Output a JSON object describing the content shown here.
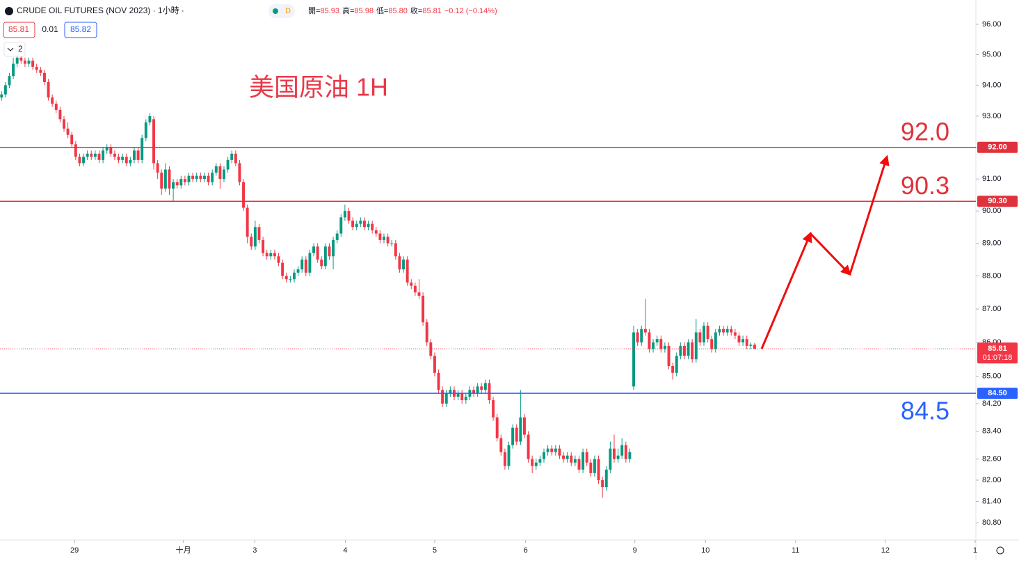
{
  "chart_data": {
    "type": "candlestick",
    "header": {
      "symbol": "CRUDE OIL FUTURES (NOV 2023) · 1小時 ·",
      "badge": "D",
      "quote": [
        [
          "開=",
          "85.93"
        ],
        [
          "高=",
          "85.98"
        ],
        [
          "低=",
          "85.80"
        ],
        [
          "收=",
          "85.81"
        ]
      ],
      "change": "−0.12 (−0.14%)",
      "bid": "85.81",
      "spread": "0.01",
      "ask": "85.82",
      "count": "2"
    },
    "title": "美国原油 1H",
    "up_color": "#089981",
    "down_color": "#f23645",
    "log": true,
    "ylim": [
      80.32,
      96.81
    ],
    "xlim": [
      -0.4,
      249.7
    ],
    "yticks": [
      {
        "value": 96,
        "label": "96.00"
      },
      {
        "value": 95,
        "label": "95.00"
      },
      {
        "value": 94,
        "label": "94.00"
      },
      {
        "value": 93,
        "label": "93.00"
      },
      {
        "value": 92,
        "label": "92.00"
      },
      {
        "value": 91,
        "label": "91.00"
      },
      {
        "value": 90,
        "label": "90.00"
      },
      {
        "value": 89,
        "label": "89.00"
      },
      {
        "value": 88,
        "label": "88.00"
      },
      {
        "value": 87,
        "label": "87.00"
      },
      {
        "value": 86,
        "label": "86.00"
      },
      {
        "value": 85,
        "label": "85.00"
      },
      {
        "value": 84.2,
        "label": "84.20"
      },
      {
        "value": 83.4,
        "label": "83.40"
      },
      {
        "value": 82.6,
        "label": "82.60"
      },
      {
        "value": 82,
        "label": "82.00"
      },
      {
        "value": 81.4,
        "label": "81.40"
      },
      {
        "value": 80.8,
        "label": "80.80"
      }
    ],
    "xticks": [
      {
        "value": 18.7,
        "label": "29"
      },
      {
        "value": 46.6,
        "label": "十月"
      },
      {
        "value": 64.9,
        "label": "3"
      },
      {
        "value": 88.1,
        "label": "4"
      },
      {
        "value": 111.0,
        "label": "5"
      },
      {
        "value": 134.3,
        "label": "6"
      },
      {
        "value": 162.3,
        "label": "9"
      },
      {
        "value": 180.4,
        "label": "10"
      },
      {
        "value": 203.5,
        "label": "11"
      },
      {
        "value": 226.5,
        "label": "12"
      },
      {
        "value": 249.5,
        "label": "1"
      }
    ],
    "levels": [
      {
        "value": 92,
        "label": "92.00",
        "text": "92.0",
        "color": "#e0323c",
        "text_side": "above"
      },
      {
        "value": 90.3,
        "label": "90.30",
        "text": "90.3",
        "color": "#e0323c",
        "text_side": "above"
      },
      {
        "value": 84.5,
        "label": "84.50",
        "text": "84.5",
        "color": "#2962ff",
        "text_side": "below"
      }
    ],
    "last": {
      "value": 85.81,
      "label": "85.81",
      "countdown": "01:07:18",
      "color": "#f23645"
    },
    "arrow": {
      "x": [
        194.8,
        207.3,
        217.4,
        226.9
      ],
      "y": [
        85.81,
        89.3,
        88.05,
        91.7
      ],
      "color": "#f00d0d"
    },
    "ohlc": [
      [
        93.6,
        93.8,
        93.5,
        93.7
      ],
      [
        93.7,
        94.1,
        93.6,
        94.0
      ],
      [
        94.0,
        94.4,
        93.9,
        94.3
      ],
      [
        94.3,
        94.9,
        94.2,
        94.7
      ],
      [
        94.7,
        95.0,
        94.6,
        94.9
      ],
      [
        94.9,
        95.0,
        94.7,
        94.8
      ],
      [
        94.8,
        94.9,
        94.6,
        94.7
      ],
      [
        94.7,
        94.9,
        94.6,
        94.8
      ],
      [
        94.8,
        94.9,
        94.5,
        94.6
      ],
      [
        94.6,
        94.7,
        94.4,
        94.5
      ],
      [
        94.5,
        94.6,
        94.3,
        94.4
      ],
      [
        94.4,
        94.5,
        94.0,
        94.1
      ],
      [
        94.1,
        94.2,
        93.5,
        93.6
      ],
      [
        93.6,
        93.7,
        93.3,
        93.4
      ],
      [
        93.4,
        93.5,
        93.1,
        93.2
      ],
      [
        93.2,
        93.3,
        92.8,
        92.9
      ],
      [
        92.9,
        93.0,
        92.5,
        92.6
      ],
      [
        92.6,
        92.8,
        92.3,
        92.4
      ],
      [
        92.4,
        92.5,
        92.0,
        92.1
      ],
      [
        92.1,
        92.2,
        91.6,
        91.7
      ],
      [
        91.7,
        91.8,
        91.4,
        91.5
      ],
      [
        91.5,
        91.8,
        91.4,
        91.7
      ],
      [
        91.7,
        91.9,
        91.6,
        91.8
      ],
      [
        91.8,
        91.9,
        91.6,
        91.7
      ],
      [
        91.7,
        91.9,
        91.6,
        91.8
      ],
      [
        91.8,
        91.9,
        91.5,
        91.6
      ],
      [
        91.6,
        92.0,
        91.5,
        91.9
      ],
      [
        91.9,
        92.1,
        91.8,
        92.0
      ],
      [
        92.0,
        92.1,
        91.7,
        91.8
      ],
      [
        91.8,
        91.9,
        91.6,
        91.7
      ],
      [
        91.7,
        91.8,
        91.5,
        91.6
      ],
      [
        91.6,
        91.8,
        91.5,
        91.7
      ],
      [
        91.7,
        91.8,
        91.4,
        91.5
      ],
      [
        91.5,
        91.7,
        91.4,
        91.6
      ],
      [
        91.6,
        92.0,
        91.5,
        91.9
      ],
      [
        91.9,
        92.0,
        91.5,
        91.6
      ],
      [
        91.6,
        92.4,
        91.5,
        92.3
      ],
      [
        92.3,
        92.9,
        92.2,
        92.8
      ],
      [
        92.8,
        93.1,
        92.7,
        93.0
      ],
      [
        92.9,
        93.0,
        91.3,
        91.5
      ],
      [
        91.5,
        91.6,
        91.0,
        91.2
      ],
      [
        91.2,
        91.3,
        90.5,
        90.7
      ],
      [
        90.7,
        91.5,
        90.6,
        91.3
      ],
      [
        91.3,
        91.4,
        90.5,
        90.7
      ],
      [
        90.7,
        91.0,
        90.3,
        90.9
      ],
      [
        90.9,
        91.0,
        90.7,
        90.8
      ],
      [
        90.8,
        91.1,
        90.7,
        91.0
      ],
      [
        91.0,
        91.1,
        90.8,
        90.9
      ],
      [
        90.9,
        91.2,
        90.8,
        91.1
      ],
      [
        91.1,
        91.2,
        90.9,
        91.0
      ],
      [
        91.0,
        91.2,
        90.9,
        91.1
      ],
      [
        91.1,
        91.2,
        90.9,
        91.0
      ],
      [
        91.0,
        91.2,
        90.9,
        91.1
      ],
      [
        91.1,
        91.2,
        90.8,
        90.9
      ],
      [
        90.9,
        91.3,
        90.8,
        91.2
      ],
      [
        91.2,
        91.5,
        91.1,
        91.4
      ],
      [
        91.4,
        91.5,
        90.7,
        91.0
      ],
      [
        91.0,
        91.4,
        90.9,
        91.3
      ],
      [
        91.3,
        91.7,
        91.2,
        91.6
      ],
      [
        91.6,
        91.9,
        91.5,
        91.8
      ],
      [
        91.8,
        91.9,
        91.4,
        91.5
      ],
      [
        91.5,
        91.6,
        90.8,
        90.9
      ],
      [
        90.9,
        91.0,
        90.0,
        90.1
      ],
      [
        90.1,
        90.2,
        89.0,
        89.2
      ],
      [
        89.2,
        89.3,
        88.8,
        88.9
      ],
      [
        88.9,
        89.7,
        88.8,
        89.5
      ],
      [
        89.5,
        89.6,
        89.0,
        89.1
      ],
      [
        89.1,
        89.2,
        88.6,
        88.7
      ],
      [
        88.7,
        88.8,
        88.5,
        88.6
      ],
      [
        88.6,
        88.8,
        88.5,
        88.7
      ],
      [
        88.7,
        88.8,
        88.5,
        88.6
      ],
      [
        88.6,
        88.7,
        88.3,
        88.4
      ],
      [
        88.4,
        88.5,
        87.9,
        88.0
      ],
      [
        88.0,
        88.1,
        87.8,
        87.9
      ],
      [
        87.9,
        88.0,
        87.8,
        87.9
      ],
      [
        87.9,
        88.2,
        87.8,
        88.1
      ],
      [
        88.1,
        88.3,
        88.0,
        88.2
      ],
      [
        88.2,
        88.6,
        88.1,
        88.5
      ],
      [
        88.5,
        88.6,
        88.0,
        88.1
      ],
      [
        88.1,
        88.8,
        88.0,
        88.7
      ],
      [
        88.7,
        89.0,
        88.6,
        88.9
      ],
      [
        88.9,
        89.0,
        88.4,
        88.5
      ],
      [
        88.5,
        88.6,
        88.2,
        88.3
      ],
      [
        88.3,
        89.0,
        88.2,
        88.9
      ],
      [
        88.9,
        89.0,
        88.5,
        88.6
      ],
      [
        88.6,
        89.2,
        88.2,
        89.1
      ],
      [
        89.1,
        89.4,
        89.0,
        89.3
      ],
      [
        89.3,
        89.9,
        89.2,
        89.8
      ],
      [
        89.8,
        90.2,
        89.7,
        90.0
      ],
      [
        90.0,
        90.1,
        89.6,
        89.7
      ],
      [
        89.7,
        89.8,
        89.4,
        89.5
      ],
      [
        89.5,
        89.7,
        89.4,
        89.6
      ],
      [
        89.6,
        89.8,
        89.5,
        89.7
      ],
      [
        89.7,
        89.8,
        89.4,
        89.5
      ],
      [
        89.5,
        89.7,
        89.4,
        89.6
      ],
      [
        89.6,
        89.7,
        89.3,
        89.4
      ],
      [
        89.4,
        89.5,
        89.2,
        89.3
      ],
      [
        89.3,
        89.4,
        89.0,
        89.1
      ],
      [
        89.1,
        89.3,
        89.0,
        89.2
      ],
      [
        89.2,
        89.3,
        88.9,
        89.0
      ],
      [
        89.0,
        89.1,
        88.9,
        89.0
      ],
      [
        89.0,
        89.1,
        88.5,
        88.6
      ],
      [
        88.6,
        88.7,
        88.1,
        88.2
      ],
      [
        88.2,
        88.6,
        88.1,
        88.5
      ],
      [
        88.5,
        88.6,
        87.7,
        87.8
      ],
      [
        87.8,
        87.9,
        87.6,
        87.7
      ],
      [
        87.7,
        87.8,
        87.4,
        87.5
      ],
      [
        87.5,
        87.9,
        87.3,
        87.4
      ],
      [
        87.4,
        87.5,
        86.5,
        86.6
      ],
      [
        86.6,
        86.7,
        85.9,
        86.0
      ],
      [
        86.0,
        86.1,
        85.5,
        85.6
      ],
      [
        85.6,
        85.7,
        85.0,
        85.1
      ],
      [
        85.1,
        85.2,
        84.5,
        84.6
      ],
      [
        84.6,
        84.7,
        84.1,
        84.2
      ],
      [
        84.2,
        84.6,
        84.1,
        84.5
      ],
      [
        84.5,
        84.7,
        84.4,
        84.6
      ],
      [
        84.6,
        84.7,
        84.3,
        84.4
      ],
      [
        84.4,
        84.6,
        84.3,
        84.5
      ],
      [
        84.5,
        84.6,
        84.2,
        84.3
      ],
      [
        84.3,
        84.5,
        84.2,
        84.4
      ],
      [
        84.4,
        84.7,
        84.3,
        84.6
      ],
      [
        84.6,
        84.7,
        84.4,
        84.5
      ],
      [
        84.5,
        84.8,
        84.4,
        84.7
      ],
      [
        84.7,
        84.8,
        84.5,
        84.6
      ],
      [
        84.6,
        84.9,
        84.5,
        84.8
      ],
      [
        84.8,
        84.9,
        84.2,
        84.3
      ],
      [
        84.3,
        84.4,
        83.7,
        83.8
      ],
      [
        83.8,
        83.9,
        83.1,
        83.2
      ],
      [
        83.2,
        83.3,
        82.7,
        82.8
      ],
      [
        82.8,
        82.9,
        82.3,
        82.4
      ],
      [
        82.4,
        83.1,
        82.3,
        83.0
      ],
      [
        83.0,
        83.6,
        82.9,
        83.5
      ],
      [
        83.5,
        83.6,
        83.0,
        83.1
      ],
      [
        83.1,
        84.6,
        83.0,
        83.8
      ],
      [
        83.8,
        83.9,
        83.2,
        83.3
      ],
      [
        83.3,
        83.4,
        82.5,
        82.6
      ],
      [
        82.6,
        82.7,
        82.2,
        82.4
      ],
      [
        82.4,
        82.6,
        82.3,
        82.5
      ],
      [
        82.5,
        82.7,
        82.4,
        82.6
      ],
      [
        82.6,
        82.9,
        82.5,
        82.8
      ],
      [
        82.8,
        83.0,
        82.7,
        82.9
      ],
      [
        82.9,
        83.0,
        82.7,
        82.8
      ],
      [
        82.8,
        83.0,
        82.7,
        82.9
      ],
      [
        82.9,
        83.0,
        82.6,
        82.7
      ],
      [
        82.7,
        82.8,
        82.5,
        82.6
      ],
      [
        82.6,
        82.8,
        82.5,
        82.7
      ],
      [
        82.7,
        82.8,
        82.4,
        82.5
      ],
      [
        82.5,
        82.7,
        82.4,
        82.6
      ],
      [
        82.6,
        82.7,
        82.2,
        82.3
      ],
      [
        82.3,
        82.9,
        82.2,
        82.8
      ],
      [
        82.8,
        82.9,
        82.4,
        82.5
      ],
      [
        82.5,
        82.6,
        82.1,
        82.2
      ],
      [
        82.2,
        82.7,
        82.1,
        82.6
      ],
      [
        82.6,
        82.7,
        81.9,
        82.0
      ],
      [
        82.0,
        82.1,
        81.5,
        81.8
      ],
      [
        81.8,
        82.4,
        81.7,
        82.3
      ],
      [
        82.3,
        83.1,
        82.2,
        82.9
      ],
      [
        82.9,
        83.3,
        82.5,
        82.6
      ],
      [
        82.6,
        82.9,
        82.5,
        82.7
      ],
      [
        82.7,
        83.2,
        82.6,
        83.0
      ],
      [
        83.0,
        83.1,
        82.5,
        82.6
      ],
      [
        82.6,
        82.9,
        82.5,
        82.8
      ],
      [
        84.7,
        86.5,
        84.6,
        86.3
      ],
      [
        86.3,
        86.4,
        85.9,
        86.0
      ],
      [
        86.0,
        86.5,
        85.9,
        86.4
      ],
      [
        86.4,
        87.3,
        86.2,
        86.3
      ],
      [
        86.3,
        86.4,
        85.7,
        85.8
      ],
      [
        85.8,
        86.1,
        85.7,
        86.0
      ],
      [
        86.0,
        86.2,
        85.9,
        86.1
      ],
      [
        86.1,
        86.2,
        85.7,
        85.8
      ],
      [
        85.8,
        86.0,
        85.7,
        85.9
      ],
      [
        85.9,
        86.0,
        85.2,
        85.3
      ],
      [
        85.3,
        85.4,
        84.9,
        85.1
      ],
      [
        85.1,
        85.7,
        85.0,
        85.6
      ],
      [
        85.6,
        86.0,
        85.5,
        85.9
      ],
      [
        85.9,
        86.0,
        85.5,
        85.6
      ],
      [
        85.6,
        86.1,
        85.5,
        86.0
      ],
      [
        86.0,
        86.1,
        85.4,
        85.5
      ],
      [
        85.5,
        86.7,
        85.4,
        86.3
      ],
      [
        86.3,
        86.4,
        85.9,
        86.0
      ],
      [
        86.0,
        86.6,
        85.9,
        86.5
      ],
      [
        86.5,
        86.6,
        86.0,
        86.1
      ],
      [
        86.1,
        86.2,
        85.7,
        85.8
      ],
      [
        85.8,
        86.4,
        85.7,
        86.3
      ],
      [
        86.3,
        86.5,
        86.2,
        86.4
      ],
      [
        86.4,
        86.5,
        86.2,
        86.3
      ],
      [
        86.3,
        86.5,
        86.2,
        86.4
      ],
      [
        86.4,
        86.5,
        86.2,
        86.3
      ],
      [
        86.3,
        86.4,
        86.1,
        86.2
      ],
      [
        86.2,
        86.3,
        85.9,
        86.0
      ],
      [
        86.0,
        86.2,
        85.9,
        86.1
      ],
      [
        86.1,
        86.2,
        85.8,
        85.9
      ],
      [
        85.9,
        86.0,
        85.8,
        85.93
      ],
      [
        85.93,
        85.98,
        85.8,
        85.81
      ]
    ]
  }
}
